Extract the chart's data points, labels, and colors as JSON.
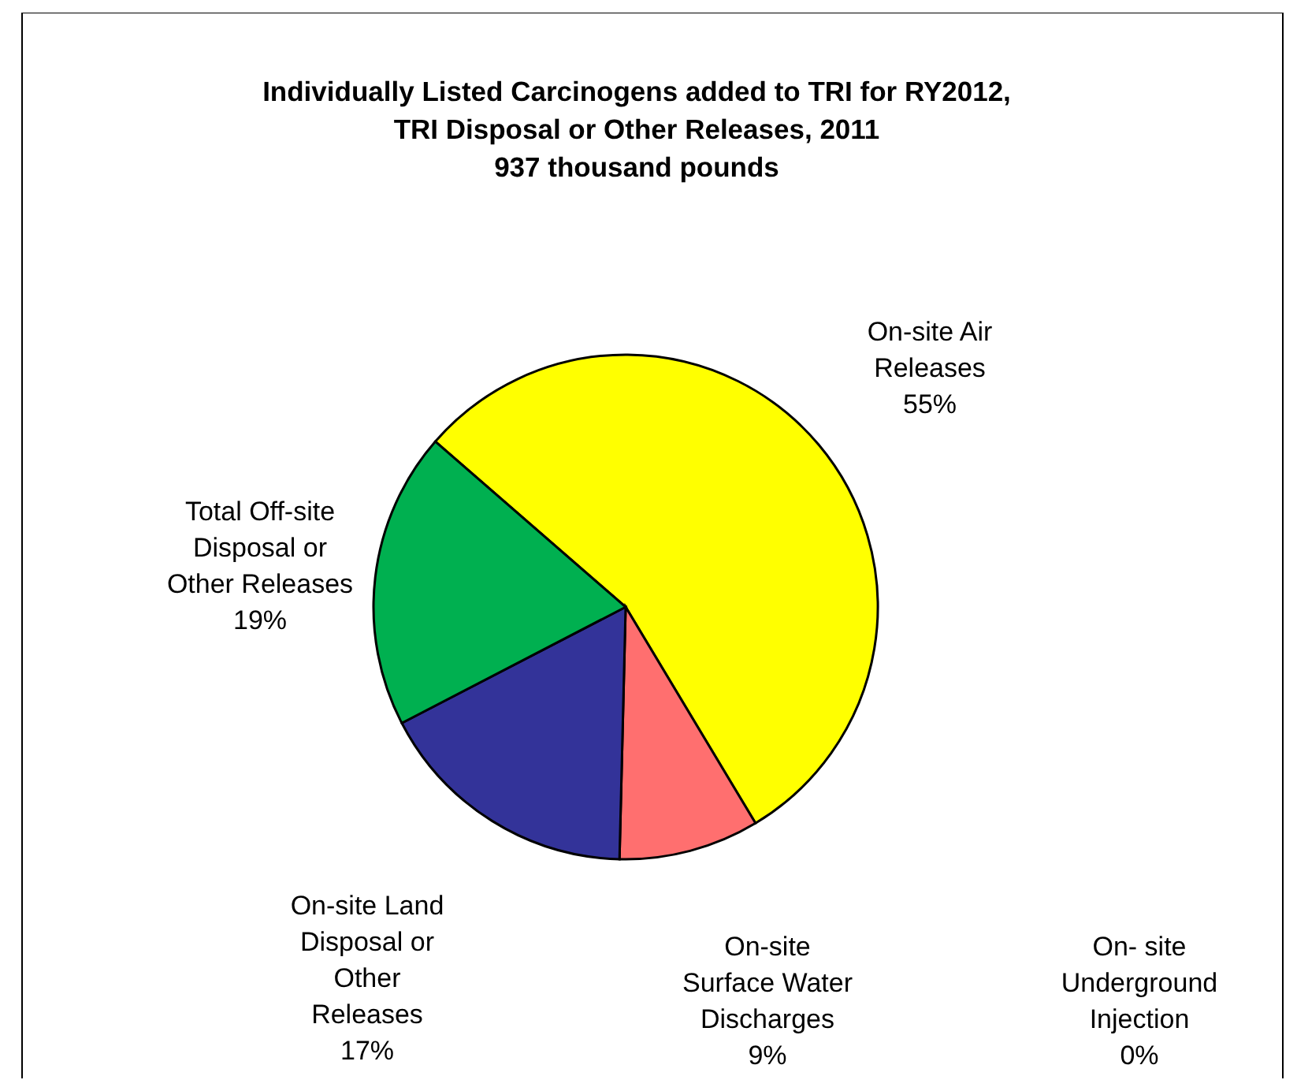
{
  "chart_data": {
    "type": "pie",
    "title": "Individually Listed Carcinogens added to TRI for RY2012, TRI Disposal or Other Releases, 2011",
    "subtitle": "937 thousand pounds",
    "categories": [
      "On-site Air Releases",
      "On- site Underground Injection",
      "On-site Surface Water Discharges",
      "On-site Land Disposal or Other Releases",
      "Total Off-site Disposal or Other Releases"
    ],
    "values": [
      55,
      0,
      9,
      17,
      19
    ],
    "colors": [
      "#ffff00",
      null,
      "#ff6f6f",
      "#333399",
      "#00b050"
    ],
    "value_labels": [
      "55%",
      "0%",
      "9%",
      "17%",
      "19%"
    ]
  }
}
